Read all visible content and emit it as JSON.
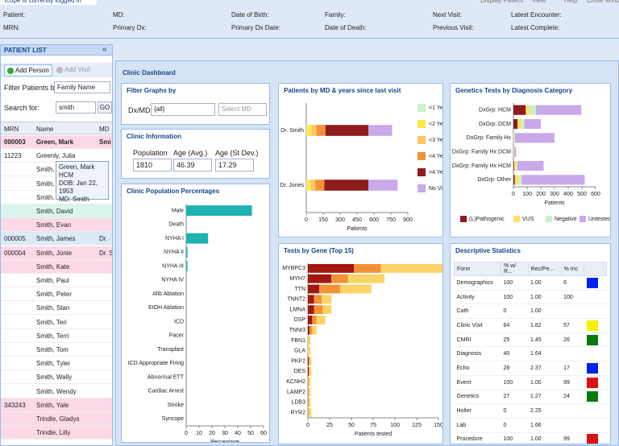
{
  "header": {
    "login": "Tcope is currently logged in",
    "menu": [
      "Display Patient",
      "View",
      "Help",
      "Close Windo"
    ],
    "fields": [
      [
        "Patient:",
        "MD:",
        "Date of Birth:",
        "Family:",
        "Next Visit:",
        "Latest Encounter:"
      ],
      [
        "MRN:",
        "Primary Dx:",
        "Primary Dx Date:",
        "Date of Death:",
        "Previous Visit:",
        "Latest Complete:"
      ]
    ]
  },
  "patient_list": {
    "title": "PATIENT LIST",
    "collapse": "«",
    "add_person": "Add Person",
    "add_visit": "Add Visit",
    "filter_label": "Filter Patients by:",
    "filter_value": "Family Name",
    "search_label": "Search for:",
    "search_value": "smith",
    "go": "GO",
    "columns": [
      "MRN",
      "Name",
      "MD"
    ],
    "rows": [
      {
        "mrn": "000003",
        "name": "Green, Mark",
        "md": "Smi",
        "color": "#fbd9e6",
        "bold": true
      },
      {
        "mrn": "11223",
        "name": "Greenly, Julia"
      },
      {
        "name": "Smith, A"
      },
      {
        "name": "Smith, E"
      },
      {
        "name": "Smith, Ca"
      },
      {
        "name": "Smith, David",
        "color": "#d9f5ec"
      },
      {
        "name": "Smith, Evan",
        "color": "#fbd9e6"
      },
      {
        "mrn": "000005",
        "name": "Smith, James",
        "md": "Dr.",
        "color": "#dceaf7"
      },
      {
        "mrn": "000004",
        "name": "Smith, Jonie",
        "md": "Dr. S",
        "color": "#fbd9e6"
      },
      {
        "name": "Smith, Kate",
        "color": "#fbd9e6"
      },
      {
        "name": "Smith, Paul"
      },
      {
        "name": "Smith, Peter"
      },
      {
        "name": "Smith, Stan"
      },
      {
        "name": "Smith, Teri"
      },
      {
        "name": "Smith, Terri"
      },
      {
        "name": "Smith, Tom"
      },
      {
        "name": "Smith, Tyler"
      },
      {
        "name": "Smith, Wally"
      },
      {
        "name": "Smith, Wendy"
      },
      {
        "mrn": "343243",
        "name": "Smith, Yale",
        "color": "#fbd9e6"
      },
      {
        "name": "Trindle, Gladys",
        "color": "#fbd9e6"
      },
      {
        "name": "Trindle, Lilly",
        "color": "#fbd9e6"
      }
    ],
    "tooltip": [
      "Green, Mark",
      "HCM",
      "DOB: Jan 22, 1953",
      "MD: Smith"
    ]
  },
  "dashboard": {
    "title": "Clinic Dashboard",
    "filter": {
      "title": "Filter Graphs by",
      "label": "Dx/MD:",
      "dx_value": "{all}",
      "md_value": "Select MD"
    },
    "clinic_info": {
      "title": "Clinic Information",
      "labels": [
        "Population",
        "Age (Avg.)",
        "Age (St Dev.)"
      ],
      "values": [
        "1810",
        "46.39",
        "17.29"
      ]
    },
    "stats": {
      "title": "Descriptive Statistics",
      "columns": [
        "Form",
        "% w/ R...",
        "Rec/Pe...",
        "% Inc"
      ],
      "rows": [
        {
          "cells": [
            "Demographics",
            "100",
            "1.00",
            "6"
          ],
          "indicator": "#0022ee"
        },
        {
          "cells": [
            "Activity",
            "100",
            "1.00",
            "100"
          ]
        },
        {
          "cells": [
            "Cath",
            "0",
            "1.00"
          ]
        },
        {
          "cells": [
            "Clinic Visit",
            "64",
            "1.82",
            "57"
          ],
          "indicator": "#f4f000"
        },
        {
          "cells": [
            "CMRI",
            "25",
            "1.45",
            "26"
          ],
          "indicator": "#0a7a0a"
        },
        {
          "cells": [
            "Diagnosis",
            "40",
            "1.64"
          ]
        },
        {
          "cells": [
            "Echo",
            "28",
            "2.37",
            "17"
          ],
          "indicator": "#0022ee"
        },
        {
          "cells": [
            "Event",
            "100",
            "1.00",
            "99"
          ],
          "indicator": "#dd1111"
        },
        {
          "cells": [
            "Genetics",
            "27",
            "1.27",
            "24"
          ],
          "indicator": "#0a7a0a"
        },
        {
          "cells": [
            "Holter",
            "0",
            "2.25"
          ]
        },
        {
          "cells": [
            "Lab",
            "0",
            "1.66"
          ]
        },
        {
          "cells": [
            "Procedure",
            "100",
            "1.00",
            "99"
          ],
          "indicator": "#dd1111"
        }
      ]
    }
  },
  "chart_data": [
    {
      "type": "bar",
      "orientation": "horizontal",
      "title": "Clinic Population Percentages",
      "categories": [
        "Male",
        "Death",
        "NYHA I",
        "NYHA II",
        "NYHA III",
        "NYHA IV",
        "Afib Ablation",
        "EtOH Ablation",
        "ICD",
        "Pacer",
        "Transplant",
        "ICD Appropriate Firing",
        "Abnormal ETT",
        "Cardiac Arrest",
        "Stroke",
        "Syncope"
      ],
      "values": [
        51,
        0,
        17,
        1,
        1,
        0,
        0,
        0,
        0,
        0,
        0,
        0,
        0,
        0,
        0,
        0
      ],
      "color": "#1fb0b0",
      "xlim": [
        0,
        60
      ],
      "xticks": [
        0,
        10,
        20,
        30,
        40,
        50,
        60
      ],
      "xlabel": "Percentage"
    },
    {
      "type": "bar",
      "orientation": "horizontal",
      "stacked": true,
      "title": "Patients by MD & years since last visit",
      "categories": [
        "Dr. Smith",
        "Dr. Jones"
      ],
      "series": [
        {
          "name": "<1 Yea",
          "color": "#c9f3c9",
          "values": [
            5,
            5
          ]
        },
        {
          "name": "<2 Yea",
          "color": "#fbe94a",
          "values": [
            40,
            35
          ]
        },
        {
          "name": "<3 Yea",
          "color": "#fcc466",
          "values": [
            45,
            40
          ]
        },
        {
          "name": "<4 Yea",
          "color": "#f29238",
          "values": [
            80,
            80
          ]
        },
        {
          "name": ">4 Yea",
          "color": "#8e1c1c",
          "values": [
            380,
            390
          ]
        },
        {
          "name": "No Visi",
          "color": "#c9a9ea",
          "values": [
            210,
            260
          ]
        }
      ],
      "xlim": [
        0,
        900
      ],
      "xticks": [
        0,
        150,
        300,
        450,
        600,
        750,
        900
      ],
      "xlabel": "Patients",
      "legend": "right"
    },
    {
      "type": "bar",
      "orientation": "horizontal",
      "stacked": true,
      "title": "Genetics Tests by Diagnosis Category",
      "categories": [
        "DxGrp: HCM",
        "DxGrp: DCM",
        "DxGrp: Family Hx",
        "DxGrp: Family Hx DCM",
        "DxGrp: Family Hx HCM",
        "DxGrp: Other"
      ],
      "series": [
        {
          "name": "(L)Pathogenic",
          "color": "#8e1c1c",
          "values": [
            90,
            30,
            0,
            0,
            5,
            10
          ]
        },
        {
          "name": "VUS",
          "color": "#fbe06a",
          "values": [
            30,
            30,
            5,
            5,
            15,
            30
          ]
        },
        {
          "name": "Negative",
          "color": "#c9f3c9",
          "values": [
            45,
            20,
            5,
            0,
            10,
            20
          ]
        },
        {
          "name": "Untested",
          "color": "#c9a9ea",
          "values": [
            330,
            120,
            290,
            15,
            190,
            460
          ]
        }
      ],
      "xlim": [
        0,
        600
      ],
      "xticks": [
        0,
        100,
        200,
        300,
        400,
        500,
        600
      ],
      "xlabel": "Patients",
      "legend": "bottom"
    },
    {
      "type": "bar",
      "orientation": "horizontal",
      "stacked": true,
      "title": "Tests by Gene (Top 15)",
      "categories": [
        "MYBPC3",
        "MYH7",
        "TTN",
        "TNNT2",
        "LMNA",
        "DSP",
        "TNNI3",
        "FBN1",
        "GLA",
        "PKP2",
        "DES",
        "KCNH2",
        "LAMP2",
        "LDB3",
        "RYR2"
      ],
      "series": [
        {
          "color": "#a0180f",
          "values": [
            53,
            27,
            13,
            7,
            7,
            5,
            2,
            0,
            0,
            1,
            1,
            0,
            0,
            0,
            0
          ]
        },
        {
          "color": "#f29238",
          "values": [
            31,
            19,
            24,
            9,
            10,
            5,
            3,
            0,
            0,
            1,
            1,
            1,
            1,
            1,
            1
          ]
        },
        {
          "color": "#fcd466",
          "values": [
            71,
            42,
            36,
            11,
            10,
            10,
            5,
            3,
            3,
            2,
            2,
            2,
            2,
            2,
            3
          ]
        }
      ],
      "xlim": [
        0,
        150
      ],
      "xticks": [
        0,
        25,
        50,
        75,
        100,
        125,
        150
      ],
      "xlabel": "Patients tested"
    }
  ]
}
